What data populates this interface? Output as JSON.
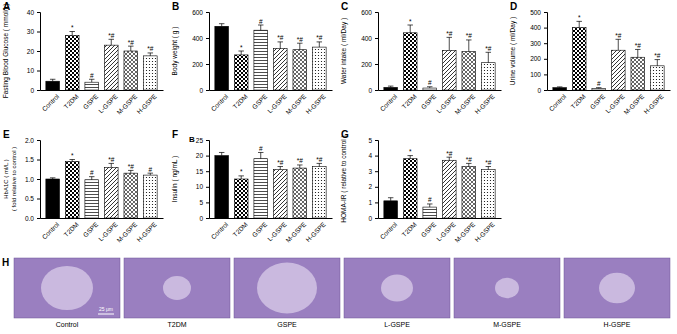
{
  "chart_data": [
    {
      "type": "bar",
      "panel": "A",
      "y_label": [
        "Fasting Blood Glucose ( mmol/L)"
      ],
      "categories": [
        "Control",
        "T2DM",
        "GSPE",
        "L-GSPE",
        "M-GSPE",
        "H-GSPE"
      ],
      "values": [
        4.5,
        28,
        4,
        23,
        20,
        17.5
      ],
      "errors": [
        1,
        2,
        1.5,
        3,
        2.5,
        1.5
      ],
      "significance": [
        null,
        "*",
        "#",
        "*#",
        "*#",
        "*#"
      ],
      "ylim": [
        0,
        40
      ],
      "yticks": [
        0,
        10,
        20,
        30,
        40
      ],
      "color": "#000000"
    },
    {
      "type": "bar",
      "panel": "B",
      "y_label": [
        "Body weight ( g )"
      ],
      "categories": [
        "Control",
        "T2DM",
        "GSPE",
        "L-GSPE",
        "M-GSPE",
        "H-GSPE"
      ],
      "values": [
        490,
        270,
        460,
        320,
        310,
        330
      ],
      "errors": [
        20,
        30,
        40,
        50,
        50,
        40
      ],
      "significance": [
        null,
        "*",
        "#",
        "*#",
        "*#",
        "*#"
      ],
      "ylim": [
        0,
        600
      ],
      "yticks": [
        0,
        200,
        400,
        600
      ],
      "color": "#000000"
    },
    {
      "type": "bar",
      "panel": "C",
      "y_label": [
        "Water intake ( ml/Day )"
      ],
      "categories": [
        "Control",
        "T2DM",
        "GSPE",
        "L-GSPE",
        "M-GSPE",
        "H-GSPE"
      ],
      "values": [
        20,
        440,
        15,
        305,
        295,
        210
      ],
      "errors": [
        10,
        60,
        10,
        100,
        90,
        80
      ],
      "significance": [
        null,
        "*",
        "#",
        "*#",
        "*#",
        "*#"
      ],
      "ylim": [
        0,
        600
      ],
      "yticks": [
        0,
        200,
        400,
        600
      ],
      "color": "#000000"
    },
    {
      "type": "bar",
      "panel": "D",
      "y_label": [
        "Urine volume ( ml/Day )"
      ],
      "categories": [
        "Control",
        "T2DM",
        "GSPE",
        "L-GSPE",
        "M-GSPE",
        "H-GSPE"
      ],
      "values": [
        15,
        400,
        10,
        255,
        210,
        155
      ],
      "errors": [
        5,
        40,
        5,
        70,
        50,
        40
      ],
      "significance": [
        null,
        "*",
        "#",
        "*#",
        "*#",
        "*#"
      ],
      "ylim": [
        0,
        500
      ],
      "yticks": [
        0,
        100,
        200,
        300,
        400,
        500
      ],
      "color": "#000000"
    },
    {
      "type": "bar",
      "panel": "E",
      "y_label": [
        "HbA1C ( ml/L )",
        "( fold relative to control )"
      ],
      "categories": [
        "Control",
        "T2DM",
        "GSPE",
        "L-GSPE",
        "M-GSPE",
        "H-GSPE"
      ],
      "values": [
        1.0,
        1.45,
        0.98,
        1.3,
        1.15,
        1.1
      ],
      "errors": [
        0.03,
        0.05,
        0.08,
        0.1,
        0.07,
        0.05
      ],
      "significance": [
        null,
        "*",
        "#",
        "*#",
        "*#",
        "#"
      ],
      "ylim": [
        0,
        2
      ],
      "yticks": [
        {
          "value": 0,
          "label": "0.0"
        },
        0.5,
        {
          "value": 1,
          "label": "1.0"
        },
        1.5,
        {
          "value": 2,
          "label": "2.0"
        }
      ],
      "color": "#000000"
    },
    {
      "type": "bar",
      "panel": "F",
      "annotation": "B",
      "y_label": [
        "Insulin ( ng/mL )"
      ],
      "categories": [
        "Control",
        "T2DM",
        "GSPE",
        "L-GSPE",
        "M-GSPE",
        "H-GSPE"
      ],
      "values": [
        20,
        12.5,
        19,
        15.5,
        16,
        16.5
      ],
      "errors": [
        1,
        1,
        2,
        1,
        1,
        1
      ],
      "significance": [
        null,
        "*",
        "#",
        "*#",
        "*#",
        "*#"
      ],
      "ylim": [
        0,
        25
      ],
      "yticks": [
        0,
        5,
        10,
        15,
        20,
        25
      ],
      "color": "#000000"
    },
    {
      "type": "bar",
      "panel": "G",
      "y_label": [
        "HOMA-IR ( relative to control )"
      ],
      "categories": [
        "Control",
        "T2DM",
        "GSPE",
        "L-GSPE",
        "M-GSPE",
        "H-GSPE"
      ],
      "values": [
        1.1,
        3.8,
        0.7,
        3.7,
        3.3,
        3.1
      ],
      "errors": [
        0.2,
        0.2,
        0.2,
        0.2,
        0.2,
        0.2
      ],
      "significance": [
        null,
        "*",
        "#",
        "*#",
        "*#",
        "*#"
      ],
      "ylim": [
        0,
        5
      ],
      "yticks": [
        0,
        1,
        2,
        3,
        4,
        5
      ],
      "color": "#000000"
    }
  ],
  "histology": {
    "panel": "H",
    "scale_bar": "25 μm",
    "images": [
      "Control",
      "T2DM",
      "GSPE",
      "L-GSPE",
      "M-GSPE",
      "H-GSPE"
    ]
  }
}
